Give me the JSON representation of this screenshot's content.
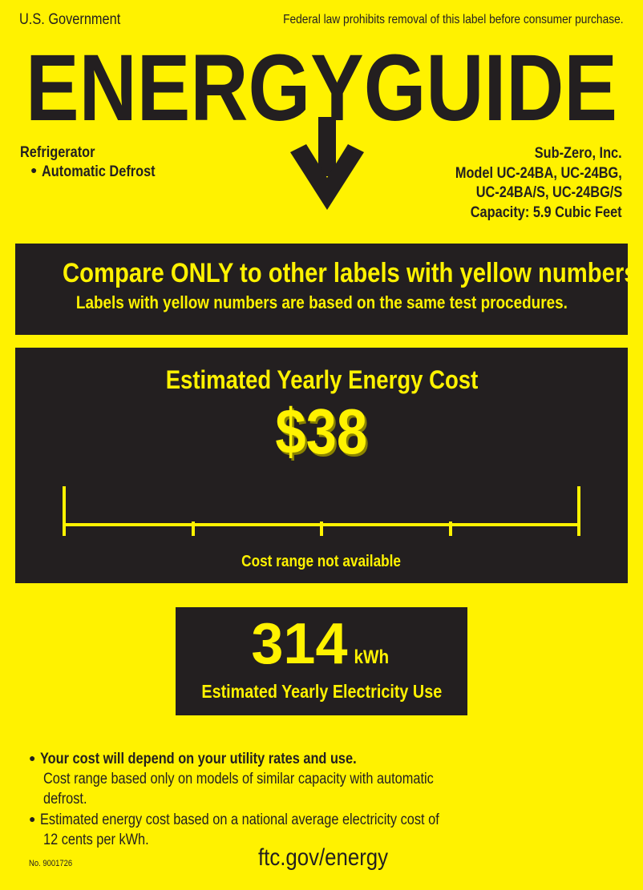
{
  "header": {
    "government": "U.S. Government",
    "notice": "Federal law prohibits removal of this label before consumer purchase.",
    "title": "ENERGYGUIDE"
  },
  "product": {
    "type": "Refrigerator",
    "feature": "Automatic Defrost",
    "manufacturer": "Sub-Zero, Inc.",
    "model_line1": "Model UC-24BA, UC-24BG,",
    "model_line2": "UC-24BA/S, UC-24BG/S",
    "capacity": "Capacity: 5.9 Cubic Feet"
  },
  "compare": {
    "headline": "Compare ONLY to other labels with yellow numbers.",
    "subline": "Labels with yellow numbers are based on the same test procedures."
  },
  "cost": {
    "heading": "Estimated Yearly Energy Cost",
    "value": "$38",
    "range_note": "Cost range not available"
  },
  "electricity": {
    "value": "314",
    "unit": "kWh",
    "label": "Estimated Yearly Electricity Use"
  },
  "notes": {
    "bullet1_bold": "Your cost will depend on your utility rates and use.",
    "bullet1_line2": "Cost range based only on models of similar capacity with automatic",
    "bullet1_line3": "defrost.",
    "bullet2_line1": "Estimated energy cost based on a national average electricity cost of",
    "bullet2_line2": "12 cents per kWh."
  },
  "footer": {
    "label_number": "No. 9001726",
    "website": "ftc.gov/energy"
  },
  "colors": {
    "label_yellow": "#fff200",
    "ink": "#231f20"
  }
}
